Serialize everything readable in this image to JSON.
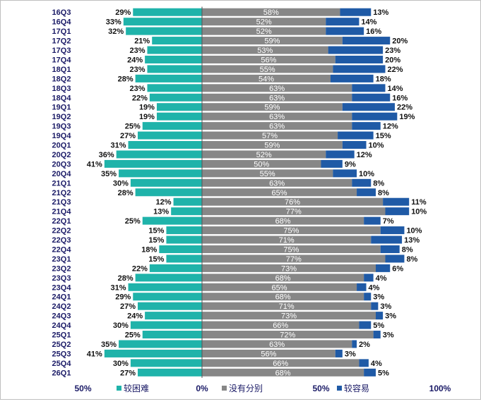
{
  "chart_data": {
    "type": "bar",
    "stacking": "diverging",
    "categories": [
      "16Q3",
      "16Q4",
      "17Q1",
      "17Q2",
      "17Q3",
      "17Q4",
      "18Q1",
      "18Q2",
      "18Q3",
      "18Q4",
      "19Q1",
      "19Q2",
      "19Q3",
      "19Q4",
      "20Q1",
      "20Q2",
      "20Q3",
      "20Q4",
      "21Q1",
      "21Q2",
      "21Q3",
      "21Q4",
      "22Q1",
      "22Q2",
      "22Q3",
      "22Q4",
      "23Q1",
      "23Q2",
      "23Q3",
      "23Q4",
      "24Q1",
      "24Q2",
      "24Q3",
      "24Q4",
      "25Q1",
      "25Q2",
      "25Q3",
      "25Q4",
      "26Q1"
    ],
    "series": [
      {
        "name": "较困难",
        "color": "#1fb3aa",
        "values": [
          29,
          33,
          32,
          21,
          23,
          24,
          23,
          28,
          23,
          22,
          19,
          19,
          25,
          27,
          31,
          36,
          41,
          35,
          30,
          28,
          12,
          13,
          25,
          15,
          15,
          18,
          15,
          22,
          28,
          31,
          29,
          27,
          24,
          30,
          25,
          35,
          41,
          30,
          27
        ]
      },
      {
        "name": "没有分别",
        "color": "#878787",
        "values": [
          58,
          52,
          52,
          59,
          53,
          56,
          55,
          54,
          63,
          63,
          59,
          63,
          63,
          57,
          59,
          52,
          50,
          55,
          63,
          65,
          76,
          77,
          68,
          75,
          71,
          75,
          77,
          73,
          68,
          65,
          68,
          71,
          73,
          66,
          72,
          63,
          56,
          66,
          68
        ]
      },
      {
        "name": "较容易",
        "color": "#1f5aa6",
        "values": [
          13,
          14,
          16,
          20,
          23,
          20,
          22,
          18,
          14,
          16,
          22,
          19,
          12,
          15,
          10,
          12,
          9,
          10,
          8,
          8,
          11,
          10,
          7,
          10,
          13,
          8,
          8,
          6,
          4,
          4,
          3,
          3,
          3,
          5,
          3,
          2,
          3,
          4,
          5
        ]
      }
    ],
    "value_suffix": "%",
    "x_ticks": [
      "50%",
      "0%",
      "50%",
      "100%"
    ],
    "x_tick_values": [
      -50,
      0,
      50,
      100
    ],
    "xlim": [
      -50,
      100
    ],
    "legend_position": "bottom",
    "grid": false
  }
}
